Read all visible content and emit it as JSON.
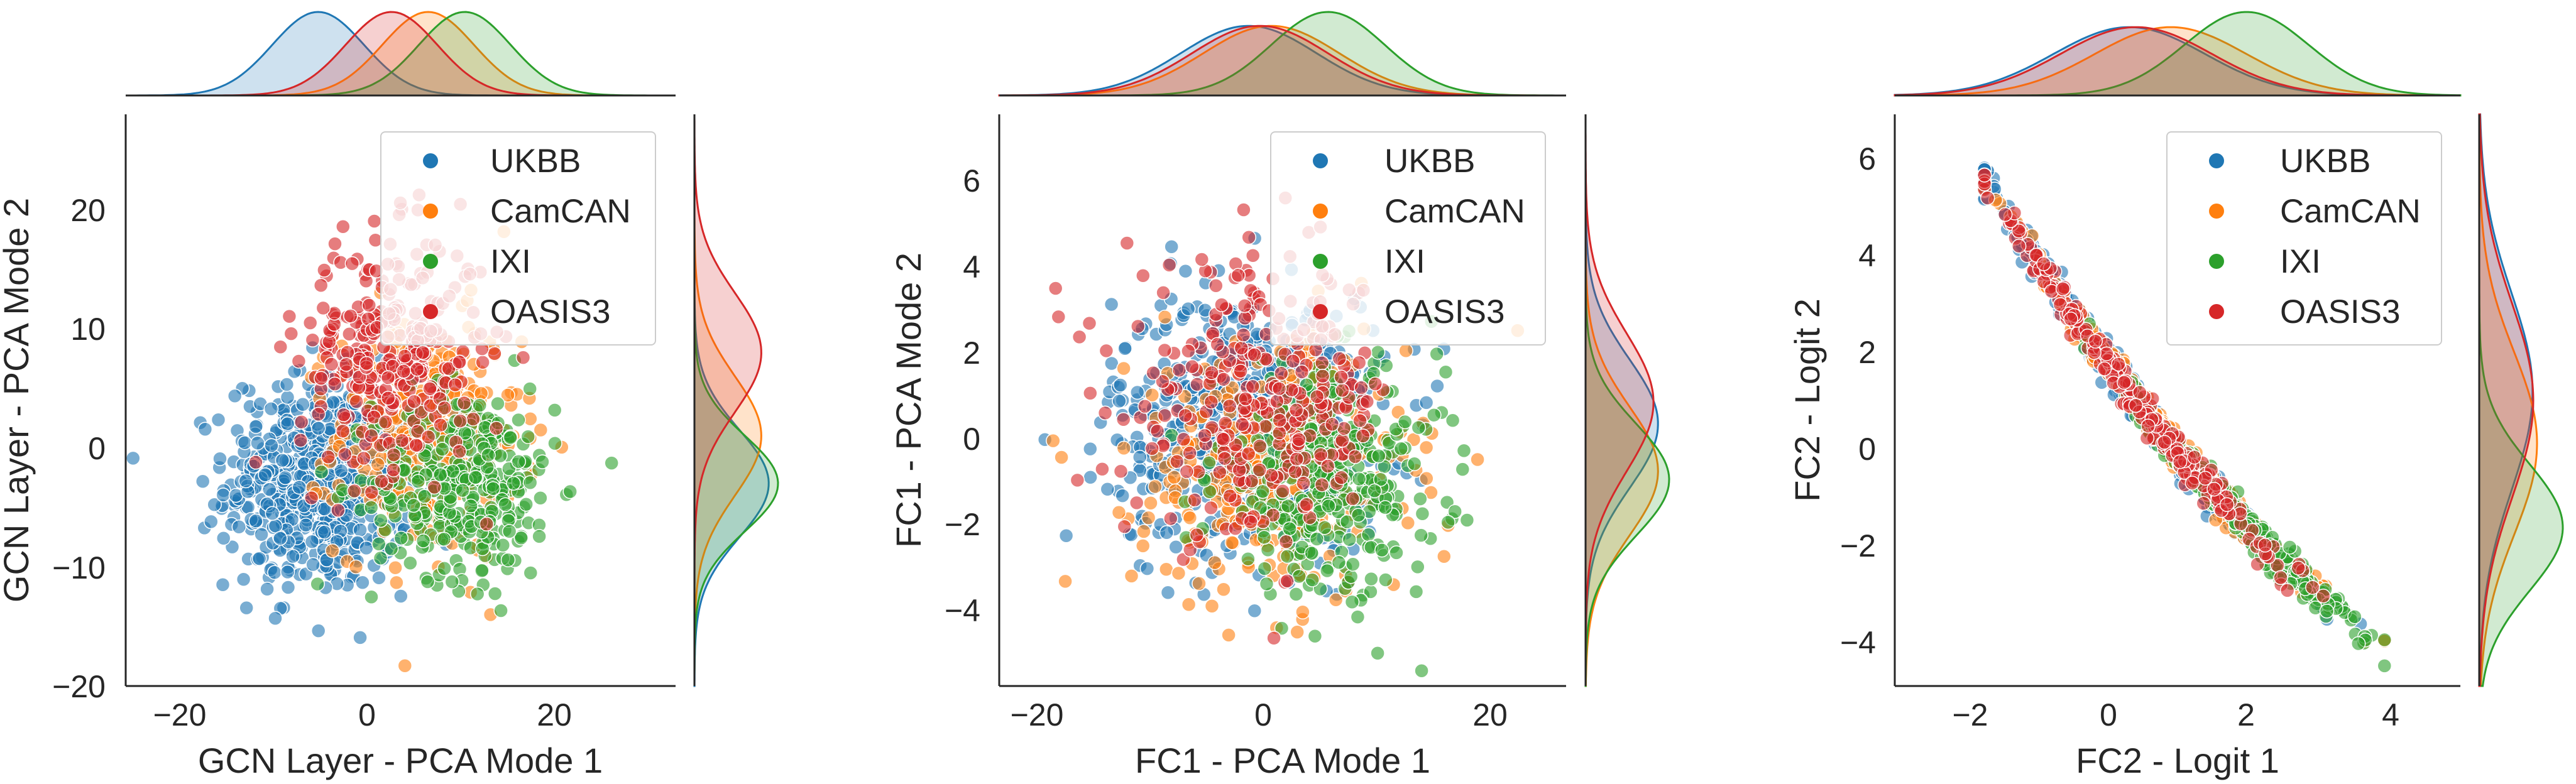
{
  "figure": {
    "legend": {
      "placement": "top-right",
      "entries": [
        {
          "name": "UKBB",
          "color": "#1f77b4"
        },
        {
          "name": "CamCAN",
          "color": "#ff7f0e"
        },
        {
          "name": "IXI",
          "color": "#2ca02c"
        },
        {
          "name": "OASIS3",
          "color": "#d62728"
        }
      ]
    }
  },
  "chart_data": [
    {
      "type": "scatter",
      "title": "",
      "xlabel": "GCN Layer - PCA Mode 1",
      "ylabel": "GCN Layer - PCA Mode 2",
      "xlim": [
        -27,
        33
      ],
      "ylim": [
        -20,
        28
      ],
      "xticks": [
        -20,
        0,
        20
      ],
      "xtick_labels": [
        "−20",
        "0",
        "20"
      ],
      "yticks": [
        -20,
        -10,
        0,
        10,
        20
      ],
      "ytick_labels": [
        "−20",
        "−10",
        "0",
        "10",
        "20"
      ],
      "grid": false,
      "marginals": "kde",
      "series": [
        {
          "name": "UKBB",
          "color": "#1f77b4",
          "x_center": -6,
          "x_spread": 5,
          "y_center": -3,
          "y_spread": 4.5,
          "n_points": 600
        },
        {
          "name": "CamCAN",
          "color": "#ff7f0e",
          "x_center": 6,
          "x_spread": 5,
          "y_center": 1,
          "y_spread": 5,
          "n_points": 350
        },
        {
          "name": "IXI",
          "color": "#2ca02c",
          "x_center": 10,
          "x_spread": 5,
          "y_center": -3,
          "y_spread": 4,
          "n_points": 350
        },
        {
          "name": "OASIS3",
          "color": "#d62728",
          "x_center": 2,
          "x_spread": 5,
          "y_center": 8,
          "y_spread": 5,
          "n_points": 300
        }
      ]
    },
    {
      "type": "scatter",
      "title": "",
      "xlabel": "FC1 - PCA Mode 1",
      "ylabel": "FC1 - PCA Mode 2",
      "xlim": [
        -23,
        27
      ],
      "ylim": [
        -5.8,
        7.5
      ],
      "xticks": [
        -20,
        0,
        20
      ],
      "xtick_labels": [
        "−20",
        "0",
        "20"
      ],
      "yticks": [
        -4,
        -2,
        0,
        2,
        4,
        6
      ],
      "ytick_labels": [
        "−4",
        "−2",
        "0",
        "2",
        "4",
        "6"
      ],
      "grid": false,
      "marginals": "kde",
      "series": [
        {
          "name": "UKBB",
          "color": "#1f77b4",
          "x_center": -1,
          "x_spread": 6,
          "y_center": 0.3,
          "y_spread": 1.5,
          "n_points": 600
        },
        {
          "name": "CamCAN",
          "color": "#ff7f0e",
          "x_center": 1,
          "x_spread": 6,
          "y_center": -0.8,
          "y_spread": 1.5,
          "n_points": 350
        },
        {
          "name": "IXI",
          "color": "#2ca02c",
          "x_center": 6,
          "x_spread": 5,
          "y_center": -1,
          "y_spread": 1.3,
          "n_points": 350
        },
        {
          "name": "OASIS3",
          "color": "#d62728",
          "x_center": 0,
          "x_spread": 6,
          "y_center": 0.8,
          "y_spread": 1.6,
          "n_points": 300
        }
      ]
    },
    {
      "type": "scatter",
      "title": "",
      "xlabel": "FC2 - Logit 1",
      "ylabel": "FC2 - Logit 2",
      "xlim": [
        -3.2,
        5.0
      ],
      "ylim": [
        -5.0,
        6.8
      ],
      "xticks": [
        -2,
        0,
        2,
        4
      ],
      "xtick_labels": [
        "−2",
        "0",
        "2",
        "4"
      ],
      "yticks": [
        -4,
        -2,
        0,
        2,
        4,
        6
      ],
      "ytick_labels": [
        "−4",
        "−2",
        "0",
        "2",
        "4",
        "6"
      ],
      "grid": false,
      "marginals": "kde",
      "relation": "y ≈ 1.45 − 1.9x + 0.12x² (points lie along a curved band)",
      "series": [
        {
          "name": "UKBB",
          "color": "#1f77b4",
          "x_center": 0.2,
          "x_spread": 1.1,
          "n_points": 500
        },
        {
          "name": "CamCAN",
          "color": "#ff7f0e",
          "x_center": 0.8,
          "x_spread": 1.1,
          "n_points": 300
        },
        {
          "name": "IXI",
          "color": "#2ca02c",
          "x_center": 1.9,
          "x_spread": 0.9,
          "n_points": 300
        },
        {
          "name": "OASIS3",
          "color": "#d62728",
          "x_center": 0.3,
          "x_spread": 1.1,
          "n_points": 250
        }
      ]
    }
  ]
}
